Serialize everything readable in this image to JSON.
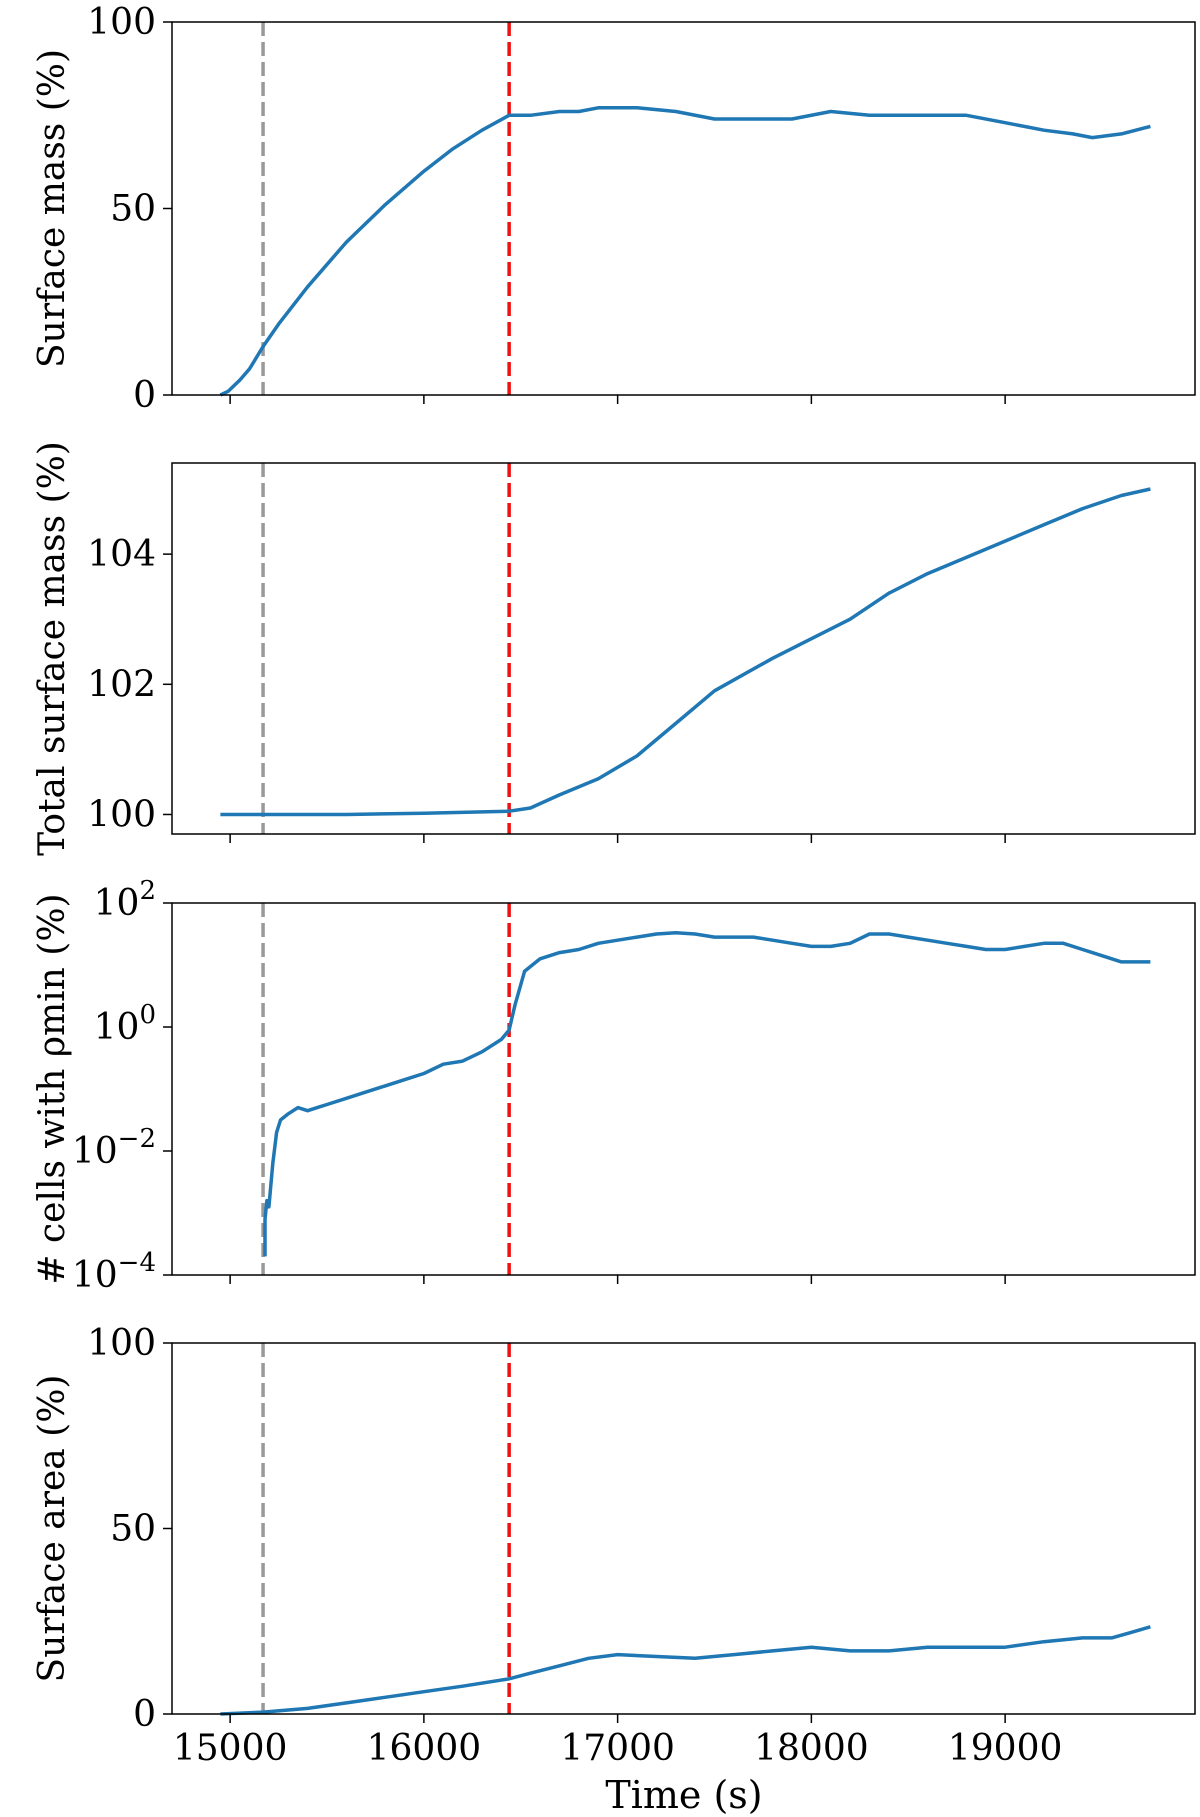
{
  "figure": {
    "xlabel": "Time (s)",
    "x_ticks": [
      15000,
      16000,
      17000,
      18000,
      19000
    ],
    "x_tick_labels": [
      "15000",
      "16000",
      "17000",
      "18000",
      "19000"
    ],
    "xlim": [
      14700,
      19980
    ],
    "vlines": [
      {
        "x": 15170,
        "color": "#999999",
        "style": "dashed"
      },
      {
        "x": 16440,
        "color": "#ee1111",
        "style": "dashed"
      }
    ],
    "line_color": "#1f77b4"
  },
  "chart_data": [
    {
      "type": "line",
      "ylabel": "Surface mass (%)",
      "ylim": [
        0,
        100
      ],
      "yscale": "linear",
      "y_ticks": [
        0,
        50,
        100
      ],
      "y_tick_labels": [
        "0",
        "50",
        "100"
      ],
      "x": [
        14950,
        14990,
        15050,
        15100,
        15170,
        15250,
        15400,
        15600,
        15800,
        16000,
        16150,
        16300,
        16440,
        16550,
        16700,
        16800,
        16900,
        17100,
        17300,
        17500,
        17700,
        17900,
        18100,
        18300,
        18500,
        18700,
        18800,
        19000,
        19200,
        19350,
        19450,
        19600,
        19750
      ],
      "y": [
        0,
        1,
        4,
        7,
        13,
        19,
        29,
        41,
        51,
        60,
        66,
        71,
        75,
        75,
        76,
        76,
        77,
        77,
        76,
        74,
        74,
        74,
        76,
        75,
        75,
        75,
        75,
        73,
        71,
        70,
        69,
        70,
        72
      ]
    },
    {
      "type": "line",
      "ylabel": "Total surface mass (%)",
      "ylim": [
        99.7,
        105.4
      ],
      "yscale": "linear",
      "y_ticks": [
        100,
        102,
        104
      ],
      "y_tick_labels": [
        "100",
        "102",
        "104"
      ],
      "x": [
        14950,
        15200,
        15600,
        16000,
        16440,
        16550,
        16700,
        16900,
        17100,
        17300,
        17500,
        17800,
        18000,
        18200,
        18400,
        18600,
        18800,
        19000,
        19200,
        19400,
        19600,
        19750
      ],
      "y": [
        100,
        100,
        100,
        100.02,
        100.05,
        100.1,
        100.3,
        100.55,
        100.9,
        101.4,
        101.9,
        102.4,
        102.7,
        103.0,
        103.4,
        103.7,
        103.95,
        104.2,
        104.45,
        104.7,
        104.9,
        105.0
      ]
    },
    {
      "type": "line",
      "ylabel": "# cells with ρmin (%)",
      "ylim": [
        -4,
        2
      ],
      "yscale": "log",
      "y_ticks": [
        -4,
        -2,
        0,
        2
      ],
      "y_tick_base": [
        "10",
        "10",
        "10",
        "10"
      ],
      "y_tick_exp": [
        "−4",
        "−2",
        "0",
        "2"
      ],
      "x": [
        15180,
        15180,
        15190,
        15200,
        15220,
        15240,
        15260,
        15300,
        15350,
        15400,
        15450,
        15500,
        15600,
        15700,
        15800,
        15900,
        16000,
        16100,
        16200,
        16300,
        16400,
        16440,
        16470,
        16520,
        16600,
        16700,
        16800,
        16900,
        17000,
        17100,
        17200,
        17300,
        17400,
        17500,
        17600,
        17700,
        17800,
        17900,
        18000,
        18100,
        18200,
        18300,
        18400,
        18500,
        18600,
        18700,
        18800,
        18900,
        19000,
        19100,
        19200,
        19300,
        19400,
        19500,
        19600,
        19750
      ],
      "y": [
        -3.7,
        -3.1,
        -2.8,
        -2.9,
        -2.2,
        -1.7,
        -1.5,
        -1.4,
        -1.3,
        -1.35,
        -1.3,
        -1.25,
        -1.15,
        -1.05,
        -0.95,
        -0.85,
        -0.75,
        -0.6,
        -0.55,
        -0.4,
        -0.2,
        -0.05,
        0.35,
        0.9,
        1.1,
        1.2,
        1.25,
        1.35,
        1.4,
        1.45,
        1.5,
        1.52,
        1.5,
        1.45,
        1.45,
        1.45,
        1.4,
        1.35,
        1.3,
        1.3,
        1.35,
        1.5,
        1.5,
        1.45,
        1.4,
        1.35,
        1.3,
        1.25,
        1.25,
        1.3,
        1.35,
        1.35,
        1.25,
        1.15,
        1.05,
        1.05
      ]
    },
    {
      "type": "line",
      "ylabel": "Surface area (%)",
      "ylim": [
        0,
        100
      ],
      "yscale": "linear",
      "y_ticks": [
        0,
        50,
        100
      ],
      "y_tick_labels": [
        "0",
        "50",
        "100"
      ],
      "x": [
        14950,
        15170,
        15400,
        15600,
        15800,
        16000,
        16200,
        16440,
        16550,
        16700,
        16850,
        17000,
        17200,
        17400,
        17600,
        17800,
        18000,
        18200,
        18400,
        18600,
        18800,
        19000,
        19200,
        19400,
        19550,
        19650,
        19750
      ],
      "y": [
        0,
        0.5,
        1.5,
        3,
        4.5,
        6,
        7.5,
        9.5,
        11,
        13,
        15,
        16,
        15.5,
        15,
        16,
        17,
        18,
        17,
        17,
        18,
        18,
        18,
        19.5,
        20.5,
        20.5,
        22,
        23.5
      ]
    }
  ]
}
